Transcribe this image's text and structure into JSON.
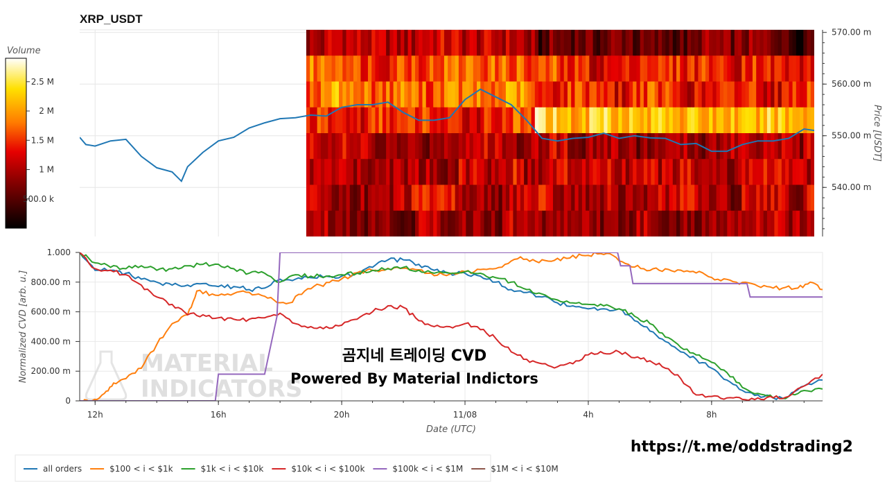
{
  "chart_data": [
    {
      "type": "heatmap",
      "title": "XRP_USDT",
      "ylabel": "Price [USDT]",
      "yticks": [
        "540.00 m",
        "550.00 m",
        "560.00 m",
        "570.00 m"
      ],
      "ytick_values": [
        0.54,
        0.55,
        0.56,
        0.57
      ],
      "ylim": [
        0.5305,
        0.5705
      ],
      "xticks": [
        "12h",
        "16h",
        "20h",
        "11/08",
        "4h",
        "8h"
      ],
      "xtick_hours": [
        12,
        16,
        20,
        24,
        28,
        32
      ],
      "xlim_hours": [
        11.5,
        35.6
      ],
      "heatmap_start_hour": 18.85,
      "price_bands": [
        0.5675,
        0.5625,
        0.5575,
        0.5525,
        0.5475,
        0.5425,
        0.5375,
        0.5325
      ],
      "colorbar": {
        "label": "Volume",
        "ticks": [
          "500.0 k",
          "1 M",
          "1.5 M",
          "2 M",
          "2.5 M"
        ],
        "tick_values": [
          500000,
          1000000,
          1500000,
          2000000,
          2500000
        ],
        "range": [
          0,
          2900000
        ]
      },
      "price_series": {
        "x": [
          11.5,
          11.7,
          12,
          12.5,
          13,
          13.5,
          14,
          14.5,
          14.8,
          15,
          15.5,
          16,
          16.5,
          17,
          17.5,
          18,
          18.5,
          19,
          19.5,
          20,
          20.5,
          21,
          21.5,
          22,
          22.5,
          23,
          23.5,
          24,
          24.5,
          25,
          25.5,
          26,
          26.5,
          27,
          27.5,
          28,
          28.5,
          29,
          29.5,
          30,
          30.5,
          31,
          31.5,
          32,
          32.5,
          33,
          33.5,
          34,
          34.5,
          35,
          35.6
        ],
        "y": [
          0.5497,
          0.5483,
          0.548,
          0.549,
          0.5493,
          0.546,
          0.5438,
          0.543,
          0.5412,
          0.544,
          0.5468,
          0.549,
          0.5497,
          0.5515,
          0.5525,
          0.5533,
          0.5535,
          0.554,
          0.5538,
          0.5555,
          0.556,
          0.556,
          0.5565,
          0.5545,
          0.553,
          0.553,
          0.5535,
          0.557,
          0.559,
          0.5575,
          0.556,
          0.553,
          0.5495,
          0.549,
          0.5495,
          0.5497,
          0.5505,
          0.5495,
          0.55,
          0.5496,
          0.5495,
          0.5483,
          0.5485,
          0.547,
          0.547,
          0.5483,
          0.549,
          0.549,
          0.5495,
          0.5513,
          0.5508
        ]
      }
    },
    {
      "type": "line",
      "ylabel": "Normalized CVD [arb. u.]",
      "xlabel": "Date (UTC)",
      "yticks": [
        "0",
        "200.00 m",
        "400.00 m",
        "600.00 m",
        "800.00 m",
        "1.000"
      ],
      "ytick_values": [
        0,
        0.2,
        0.4,
        0.6,
        0.8,
        1.0
      ],
      "ylim": [
        0,
        1.0
      ],
      "xticks": [
        "12h",
        "16h",
        "20h",
        "11/08",
        "4h",
        "8h"
      ],
      "xtick_hours": [
        12,
        16,
        20,
        24,
        28,
        32
      ],
      "xlim_hours": [
        11.5,
        35.6
      ],
      "series": [
        {
          "name": "all orders",
          "color": "#1f77b4",
          "x": [
            11.5,
            12,
            12.5,
            13,
            13.5,
            14,
            14.5,
            15,
            15.5,
            16,
            16.5,
            17,
            17.5,
            18,
            18.5,
            19,
            19.5,
            20,
            20.5,
            21,
            21.5,
            22,
            22.5,
            23,
            23.5,
            24,
            24.5,
            25,
            25.5,
            26,
            26.5,
            27,
            27.5,
            28,
            28.5,
            29,
            29.5,
            30,
            30.5,
            31,
            31.5,
            32,
            32.5,
            33,
            33.5,
            34,
            34.5,
            35,
            35.6
          ],
          "y": [
            1.0,
            0.88,
            0.88,
            0.86,
            0.82,
            0.8,
            0.78,
            0.78,
            0.79,
            0.77,
            0.77,
            0.75,
            0.76,
            0.82,
            0.82,
            0.83,
            0.84,
            0.84,
            0.86,
            0.9,
            0.95,
            0.95,
            0.92,
            0.88,
            0.86,
            0.86,
            0.84,
            0.8,
            0.75,
            0.73,
            0.7,
            0.66,
            0.64,
            0.62,
            0.62,
            0.62,
            0.54,
            0.47,
            0.4,
            0.33,
            0.28,
            0.22,
            0.14,
            0.07,
            0.04,
            0.02,
            0.03,
            0.1,
            0.14
          ]
        },
        {
          "name": "$100 < i < $1k",
          "color": "#ff7f0e",
          "x": [
            11.5,
            11.9,
            12.3,
            12.6,
            13,
            13.5,
            14,
            14.5,
            15,
            15.3,
            15.8,
            16.3,
            16.8,
            17.3,
            17.8,
            18.3,
            18.8,
            19.3,
            19.8,
            20.3,
            20.8,
            21.3,
            21.8,
            22.3,
            22.8,
            23.3,
            23.8,
            24.3,
            24.8,
            25.3,
            25.8,
            26.3,
            26.8,
            27.3,
            27.8,
            28.3,
            28.8,
            29.3,
            29.8,
            30.3,
            30.8,
            31.3,
            31.8,
            32.3,
            32.8,
            33.3,
            33.8,
            34.3,
            34.8,
            35.2,
            35.6
          ],
          "y": [
            0.0,
            0.0,
            0.05,
            0.12,
            0.15,
            0.22,
            0.38,
            0.52,
            0.58,
            0.74,
            0.72,
            0.72,
            0.74,
            0.72,
            0.68,
            0.66,
            0.74,
            0.78,
            0.81,
            0.84,
            0.88,
            0.88,
            0.9,
            0.89,
            0.86,
            0.85,
            0.86,
            0.87,
            0.89,
            0.92,
            0.97,
            0.94,
            0.94,
            0.96,
            0.98,
            0.99,
            0.98,
            0.92,
            0.89,
            0.88,
            0.87,
            0.87,
            0.85,
            0.81,
            0.8,
            0.79,
            0.77,
            0.76,
            0.76,
            0.8,
            0.75
          ]
        },
        {
          "name": "$1k < i < $10k",
          "color": "#2ca02c",
          "x": [
            11.5,
            12,
            12.5,
            13,
            13.5,
            14,
            14.5,
            15,
            15.5,
            16,
            16.5,
            17,
            17.5,
            18,
            18.5,
            19,
            19.5,
            20,
            20.5,
            21,
            21.5,
            22,
            22.5,
            23,
            23.5,
            24,
            24.5,
            25,
            25.5,
            26,
            26.5,
            27,
            27.5,
            28,
            28.5,
            29,
            29.5,
            30,
            30.5,
            31,
            31.5,
            32,
            32.5,
            33,
            33.5,
            34,
            34.5,
            35,
            35.6
          ],
          "y": [
            1.0,
            0.93,
            0.9,
            0.89,
            0.91,
            0.88,
            0.89,
            0.91,
            0.92,
            0.92,
            0.89,
            0.86,
            0.86,
            0.8,
            0.85,
            0.84,
            0.84,
            0.85,
            0.86,
            0.88,
            0.89,
            0.9,
            0.88,
            0.86,
            0.86,
            0.87,
            0.86,
            0.83,
            0.8,
            0.75,
            0.72,
            0.68,
            0.66,
            0.65,
            0.64,
            0.62,
            0.57,
            0.52,
            0.43,
            0.36,
            0.31,
            0.26,
            0.19,
            0.09,
            0.05,
            0.02,
            0.03,
            0.07,
            0.08
          ]
        },
        {
          "name": "$10k < i < $100k",
          "color": "#d62728",
          "x": [
            11.5,
            12,
            12.5,
            13,
            13.5,
            14,
            14.5,
            15,
            15.5,
            16,
            16.5,
            17,
            17.5,
            18,
            18.5,
            19,
            19.5,
            20,
            20.5,
            21,
            21.5,
            22,
            22.5,
            23,
            23.5,
            24,
            24.5,
            25,
            25.5,
            26,
            26.5,
            27,
            27.5,
            28,
            28.5,
            29,
            29.5,
            30,
            30.5,
            31,
            31.5,
            32,
            32.5,
            33,
            33.5,
            34,
            34.5,
            35,
            35.6
          ],
          "y": [
            1.0,
            0.89,
            0.88,
            0.85,
            0.78,
            0.7,
            0.65,
            0.58,
            0.58,
            0.56,
            0.55,
            0.55,
            0.56,
            0.59,
            0.52,
            0.5,
            0.5,
            0.51,
            0.55,
            0.6,
            0.64,
            0.63,
            0.54,
            0.5,
            0.5,
            0.52,
            0.48,
            0.42,
            0.33,
            0.28,
            0.25,
            0.23,
            0.25,
            0.31,
            0.32,
            0.33,
            0.29,
            0.27,
            0.22,
            0.15,
            0.04,
            0.03,
            0.02,
            0.01,
            0.02,
            0.02,
            0.03,
            0.1,
            0.18
          ]
        },
        {
          "name": "$100k < i < $1M",
          "color": "#9467bd",
          "x": [
            11.5,
            15.9,
            16.0,
            17.5,
            17.9,
            18.0,
            28.95,
            29.05,
            29.35,
            29.45,
            33.15,
            33.25,
            35.6
          ],
          "y": [
            0.0,
            0.0,
            0.18,
            0.18,
            0.57,
            1.0,
            1.0,
            0.91,
            0.91,
            0.79,
            0.79,
            0.7,
            0.7
          ]
        },
        {
          "name": "$1M < i < $10M",
          "color": "#8c564b",
          "x": [],
          "y": []
        }
      ]
    }
  ],
  "overlay": {
    "line1": "곰지네 트레이딩 CVD",
    "line2": "Powered By Material Indictors"
  },
  "watermark": {
    "line1": "MATERIAL",
    "line2": "INDICATORS"
  },
  "footer_url": "https://t.me/oddstrading2"
}
